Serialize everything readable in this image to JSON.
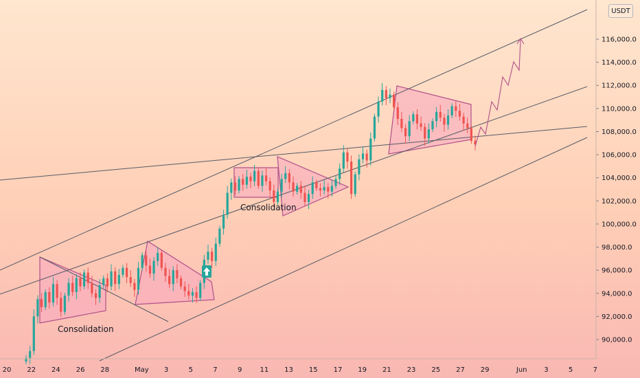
{
  "chart_data": {
    "type": "candlestick",
    "instrument_unit": "USDT",
    "x_ticks": [
      "20",
      "22",
      "24",
      "26",
      "28",
      "May",
      "3",
      "5",
      "7",
      "9",
      "11",
      "13",
      "15",
      "17",
      "19",
      "21",
      "23",
      "25",
      "27",
      "29",
      "Jun",
      "3",
      "5",
      "7"
    ],
    "y_ticks": [
      "116,000.0",
      "114,000.0",
      "112,000.0",
      "110,000.0",
      "108,000.0",
      "106,000.0",
      "104,000.0",
      "102,000.0",
      "100,000.0",
      "98,000.0",
      "96,000.0",
      "94,000.0",
      "92,000.0",
      "90,000.0"
    ],
    "y_tick_values": [
      116000,
      114000,
      112000,
      110000,
      108000,
      106000,
      104000,
      102000,
      100000,
      98000,
      96000,
      94000,
      92000,
      90000
    ],
    "ylim": [
      88000,
      118000
    ],
    "colors": {
      "up": "#26a69a",
      "down": "#ef5350",
      "pattern_fill": "#f7a8c0",
      "pattern_stroke": "#b0508a",
      "trendline": "#555a66",
      "badge": "#26a69a"
    },
    "annotations": [
      {
        "text": "Consolidation",
        "date": "Apr 23",
        "price": 91000
      },
      {
        "text": "Consolidation",
        "date": "May 10",
        "price": 102500
      }
    ],
    "price_path_closes": [
      88400,
      89000,
      92000,
      93500,
      92800,
      94100,
      93200,
      94800,
      93600,
      92400,
      93800,
      94900,
      94100,
      95300,
      94600,
      95800,
      94900,
      94000,
      93600,
      94700,
      95300,
      94600,
      95900,
      94800,
      95600,
      96200,
      95400,
      94900,
      94300,
      96200,
      97300,
      96400,
      95700,
      96800,
      97500,
      96200,
      95500,
      94800,
      96000,
      95300,
      94600,
      94200,
      93800,
      94100,
      93600,
      94900,
      96900,
      97600,
      96800,
      98300,
      99600,
      100800,
      102700,
      103600,
      102900,
      103900,
      103400,
      104100,
      103700,
      104600,
      103300,
      104200,
      103700,
      102900,
      101900,
      102800,
      103900,
      104400,
      103600,
      102800,
      103300,
      102700,
      101900,
      102600,
      103600,
      103100,
      102900,
      103200,
      102800,
      103300,
      103900,
      104800,
      106200,
      105400,
      102600,
      104300,
      105600,
      106100,
      105500,
      107400,
      109300,
      110600,
      111600,
      110900,
      111200,
      110100,
      109100,
      108300,
      107600,
      108900,
      109500,
      108700,
      108400,
      107400,
      108200,
      108900,
      109700,
      109200,
      108600,
      109400,
      110200,
      109800,
      109300,
      108700,
      108300,
      107200,
      106900
    ]
  },
  "labels": {
    "unit": "USDT",
    "annotation_left": "Consolidation",
    "annotation_right": "Consolidation"
  }
}
